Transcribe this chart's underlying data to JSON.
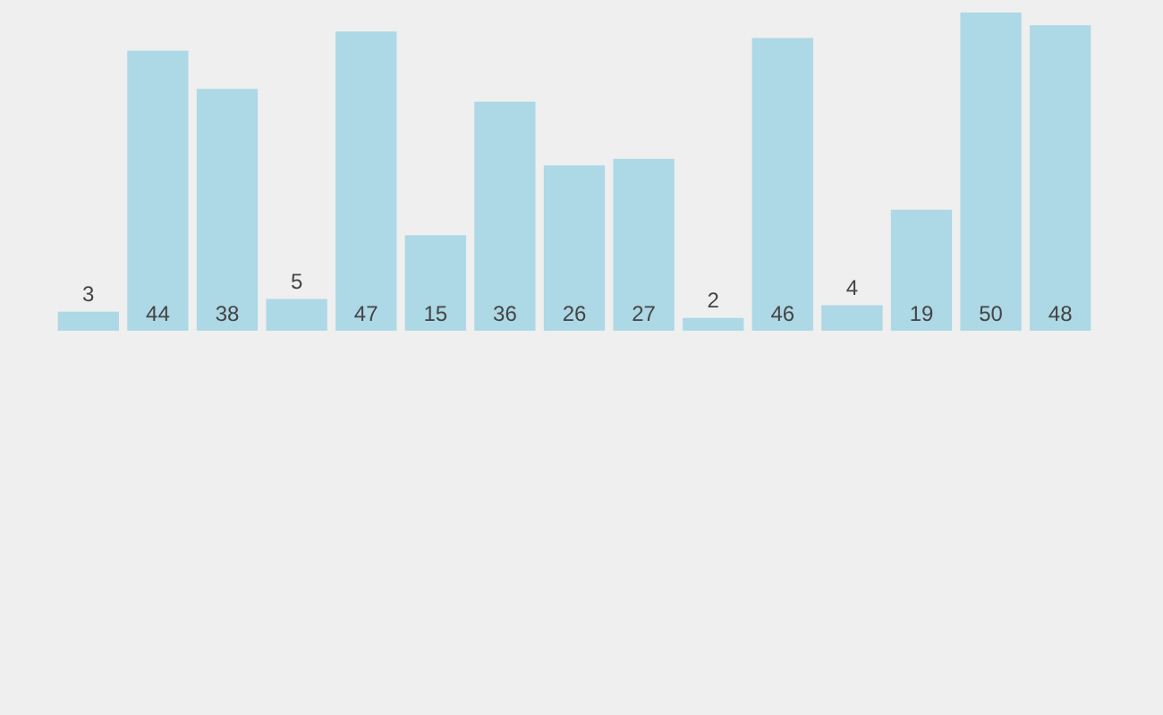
{
  "chart_data": {
    "type": "bar",
    "categories": [
      null,
      null,
      null,
      null,
      null,
      null,
      null,
      null,
      null,
      null,
      null,
      null,
      null,
      null,
      null
    ],
    "values": [
      3,
      44,
      38,
      5,
      47,
      15,
      36,
      26,
      27,
      2,
      46,
      4,
      19,
      50,
      48
    ],
    "color": "#add8e6",
    "data_labels": true,
    "grid": false,
    "tick_labels": false,
    "legend": false
  }
}
